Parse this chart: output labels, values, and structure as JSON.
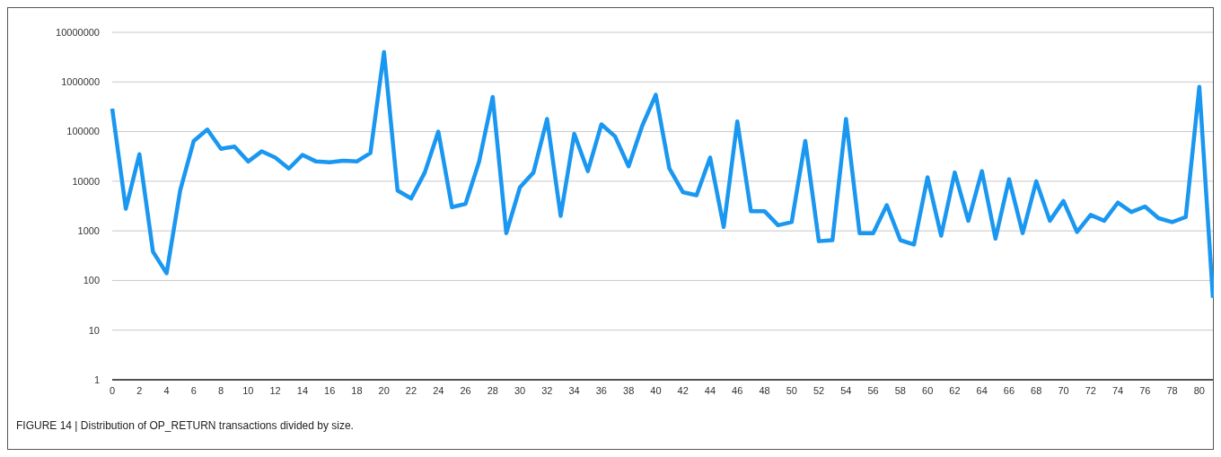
{
  "chart_data": {
    "type": "line",
    "log": "y",
    "grid": "y",
    "marker": "none",
    "line_style": "solid",
    "x": [
      0,
      1,
      2,
      3,
      4,
      5,
      6,
      7,
      8,
      9,
      10,
      11,
      12,
      13,
      14,
      15,
      16,
      17,
      18,
      19,
      20,
      21,
      22,
      23,
      24,
      25,
      26,
      27,
      28,
      29,
      30,
      31,
      32,
      33,
      34,
      35,
      36,
      37,
      38,
      39,
      40,
      41,
      42,
      43,
      44,
      45,
      46,
      47,
      48,
      49,
      50,
      51,
      52,
      53,
      54,
      55,
      56,
      57,
      58,
      59,
      60,
      61,
      62,
      63,
      64,
      65,
      66,
      67,
      68,
      69,
      70,
      71,
      72,
      73,
      74,
      75,
      76,
      77,
      78,
      79,
      80,
      81
    ],
    "series": [
      {
        "color": "#1a97f0",
        "values": [
          290000,
          2800,
          35000,
          380,
          140,
          6500,
          65000,
          110000,
          45000,
          50000,
          25000,
          40000,
          30000,
          18000,
          34000,
          25000,
          24000,
          26000,
          25000,
          37000,
          4000000,
          6500,
          4500,
          15000,
          100000,
          3000,
          3500,
          25000,
          500000,
          900,
          7500,
          15000,
          180000,
          2000,
          90000,
          16000,
          140000,
          80000,
          20000,
          130000,
          550000,
          18000,
          6000,
          5200,
          30000,
          1200,
          160000,
          2500,
          2500,
          1300,
          1500,
          65000,
          620,
          650,
          180000,
          900,
          900,
          3300,
          650,
          530,
          12000,
          800,
          15000,
          1600,
          16000,
          700,
          11000,
          900,
          10000,
          1600,
          4000,
          950,
          2100,
          1600,
          3700,
          2400,
          3100,
          1800,
          1500,
          1900,
          800000,
          45
        ]
      }
    ],
    "xlim": [
      0,
      81
    ],
    "xticks": [
      0,
      2,
      4,
      6,
      8,
      10,
      12,
      14,
      16,
      18,
      20,
      22,
      24,
      26,
      28,
      30,
      32,
      34,
      36,
      38,
      40,
      42,
      44,
      46,
      48,
      50,
      52,
      54,
      56,
      58,
      60,
      62,
      64,
      66,
      68,
      70,
      72,
      74,
      76,
      78,
      80
    ],
    "ylim": [
      1,
      10000000
    ],
    "yticks": [
      1,
      10,
      100,
      1000,
      10000,
      100000,
      1000000,
      10000000
    ],
    "annotations": [
      "FIGURE 14 | Distribution of OP_RETURN transactions divided by size."
    ]
  }
}
